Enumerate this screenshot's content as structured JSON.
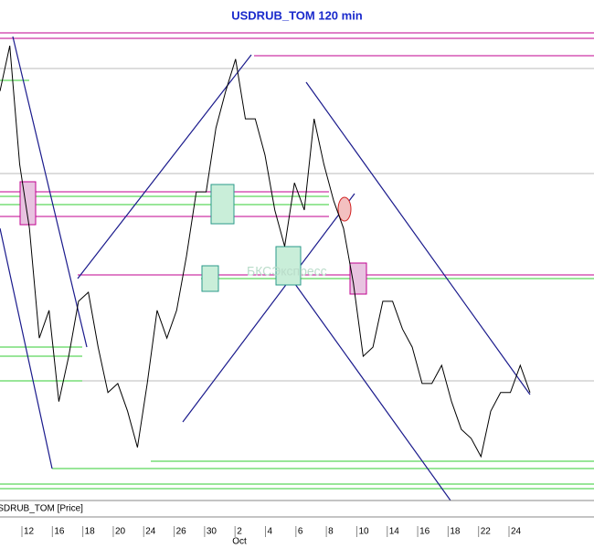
{
  "chart_data": {
    "type": "line",
    "title": "USDRUB_TOM 120 min",
    "series": [
      {
        "name": "USDRUB_TOM [Price]",
        "color": "#000000",
        "values": [
          85.7,
          95.2,
          70.4,
          57.0,
          34.0,
          39.8,
          20.7,
          30.2,
          41.7,
          43.6,
          32.1,
          22.6,
          24.5,
          18.7,
          11.1,
          24.5,
          39.8,
          34.0,
          39.8,
          51.2,
          64.6,
          64.6,
          78.0,
          85.7,
          92.4,
          79.9,
          79.9,
          72.3,
          60.8,
          53.2,
          66.5,
          60.8,
          79.9,
          70.4,
          62.7,
          57.0,
          45.5,
          30.2,
          32.1,
          41.7,
          41.7,
          35.9,
          32.1,
          24.5,
          24.5,
          28.3,
          20.7,
          14.9,
          13.0,
          9.2,
          18.7,
          22.6,
          22.6,
          28.3,
          22.6
        ]
      }
    ],
    "ylim": [
      0,
      100
    ],
    "xticks": [
      "12",
      "16",
      "18",
      "20",
      "24",
      "26",
      "30",
      "2",
      "4",
      "6",
      "8",
      "10",
      "14",
      "16",
      "18",
      "22",
      "24"
    ],
    "month_label": "Oct",
    "watermark": "БКСЭкспресс"
  }
}
